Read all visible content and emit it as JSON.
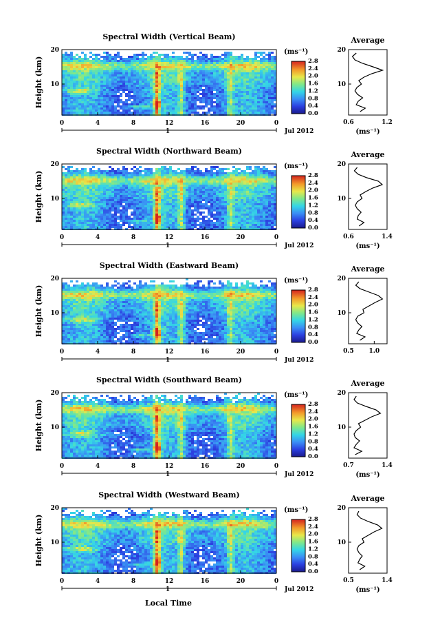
{
  "figure": {
    "date_label": "Jul 2012",
    "xlabel": "Local Time",
    "day_marker": "1",
    "avg_title": "Average",
    "unit": "(ms⁻¹)",
    "y_axis_label": "Height (km)"
  },
  "chart_data": [
    {
      "type": "heatmap",
      "title": "Spectral Width (Vertical Beam)",
      "xlabel": "",
      "ylabel": "Height (km)",
      "x_ticks": [
        "0",
        "4",
        "8",
        "12",
        "16",
        "20",
        "0"
      ],
      "y_ticks": [
        "10",
        "20"
      ],
      "xlim": [
        0,
        24
      ],
      "ylim": [
        1,
        20
      ],
      "colorbar": {
        "label": "(ms⁻¹)",
        "ticks": [
          "0.0",
          "0.4",
          "0.8",
          "1.2",
          "1.6",
          "2.0",
          "2.4",
          "2.8"
        ],
        "range": [
          0,
          3.0
        ]
      },
      "average_profile": {
        "title": "Average",
        "xlabel": "(ms⁻¹)",
        "x_ticks": [
          "0.6",
          "1.2"
        ],
        "xlim": [
          0.6,
          1.2
        ],
        "y_ticks": [
          "10",
          "20"
        ],
        "height_km": [
          2,
          3,
          4,
          5,
          6,
          7,
          8,
          9,
          10,
          11,
          12,
          13,
          14,
          15,
          16,
          17,
          18,
          19
        ],
        "width": [
          0.78,
          0.86,
          0.72,
          0.75,
          0.82,
          0.74,
          0.7,
          0.73,
          0.8,
          0.76,
          0.84,
          0.96,
          1.13,
          0.98,
          0.82,
          0.7,
          0.66,
          0.72
        ]
      }
    },
    {
      "type": "heatmap",
      "title": "Spectral Width (Northward Beam)",
      "xlabel": "",
      "ylabel": "Height (km)",
      "x_ticks": [
        "0",
        "4",
        "8",
        "12",
        "16",
        "20",
        "0"
      ],
      "y_ticks": [
        "10",
        "20"
      ],
      "xlim": [
        0,
        24
      ],
      "ylim": [
        1,
        20
      ],
      "colorbar": {
        "label": "(ms⁻¹)",
        "ticks": [
          "0.0",
          "0.4",
          "0.8",
          "1.2",
          "1.6",
          "2.0",
          "2.4",
          "2.8"
        ],
        "range": [
          0,
          3.0
        ]
      },
      "average_profile": {
        "title": "Average",
        "xlabel": "(ms⁻¹)",
        "x_ticks": [
          "0.6",
          "1.4"
        ],
        "xlim": [
          0.6,
          1.4
        ],
        "y_ticks": [
          "10",
          "20"
        ],
        "height_km": [
          2,
          3,
          4,
          5,
          6,
          7,
          8,
          9,
          10,
          11,
          12,
          13,
          14,
          15,
          16,
          17,
          18,
          19
        ],
        "width": [
          0.82,
          0.92,
          0.78,
          0.8,
          0.86,
          0.78,
          0.74,
          0.78,
          0.88,
          0.84,
          0.96,
          1.1,
          1.3,
          1.22,
          0.98,
          0.8,
          0.72,
          0.78
        ]
      }
    },
    {
      "type": "heatmap",
      "title": "Spectral Width (Eastward Beam)",
      "xlabel": "",
      "ylabel": "Height (km)",
      "x_ticks": [
        "0",
        "4",
        "8",
        "12",
        "16",
        "20",
        "0"
      ],
      "y_ticks": [
        "10",
        "20"
      ],
      "xlim": [
        0,
        24
      ],
      "ylim": [
        1,
        20
      ],
      "colorbar": {
        "label": "(ms⁻¹)",
        "ticks": [
          "0.0",
          "0.4",
          "0.8",
          "1.2",
          "1.6",
          "2.0",
          "2.4",
          "2.8"
        ],
        "range": [
          0,
          3.0
        ]
      },
      "average_profile": {
        "title": "Average",
        "xlabel": "",
        "x_ticks": [
          "0.5",
          "1.0"
        ],
        "xlim": [
          0.5,
          1.25
        ],
        "y_ticks": [
          "10",
          "20"
        ],
        "height_km": [
          2,
          3,
          4,
          5,
          6,
          7,
          8,
          9,
          10,
          11,
          12,
          13,
          14,
          15,
          16,
          17,
          18,
          19
        ],
        "width": [
          0.72,
          0.82,
          0.66,
          0.7,
          0.76,
          0.68,
          0.64,
          0.68,
          0.8,
          0.78,
          0.9,
          1.02,
          1.16,
          1.08,
          0.9,
          0.72,
          0.64,
          0.7
        ]
      }
    },
    {
      "type": "heatmap",
      "title": "Spectral Width (Southward Beam)",
      "xlabel": "",
      "ylabel": "Height (km)",
      "x_ticks": [
        "0",
        "4",
        "8",
        "12",
        "16",
        "20",
        "0"
      ],
      "y_ticks": [
        "10",
        "20"
      ],
      "xlim": [
        0,
        24
      ],
      "ylim": [
        1,
        20
      ],
      "colorbar": {
        "label": "(ms⁻¹)",
        "ticks": [
          "0.0",
          "0.4",
          "0.8",
          "1.2",
          "1.6",
          "2.0",
          "2.4",
          "2.8"
        ],
        "range": [
          0,
          3.0
        ]
      },
      "average_profile": {
        "title": "Average",
        "xlabel": "(ms⁻¹)",
        "x_ticks": [
          "0.7",
          "1.4"
        ],
        "xlim": [
          0.7,
          1.4
        ],
        "y_ticks": [
          "10",
          "20"
        ],
        "height_km": [
          2,
          3,
          4,
          5,
          6,
          7,
          8,
          9,
          10,
          11,
          12,
          13,
          14,
          15,
          16,
          17,
          18,
          19
        ],
        "width": [
          0.82,
          0.94,
          0.8,
          0.84,
          0.9,
          0.82,
          0.8,
          0.84,
          0.92,
          0.88,
          1.0,
          1.12,
          1.28,
          1.2,
          1.02,
          0.86,
          0.8,
          0.84
        ]
      }
    },
    {
      "type": "heatmap",
      "title": "Spectral Width (Westward Beam)",
      "xlabel": "Local Time",
      "ylabel": "Height (km)",
      "x_ticks": [
        "0",
        "4",
        "8",
        "12",
        "16",
        "20",
        "0"
      ],
      "y_ticks": [
        "10",
        "20"
      ],
      "xlim": [
        0,
        24
      ],
      "ylim": [
        1,
        20
      ],
      "colorbar": {
        "label": "(ms⁻¹)",
        "ticks": [
          "0.0",
          "0.4",
          "0.8",
          "1.2",
          "1.6",
          "2.0",
          "2.4",
          "2.8"
        ],
        "range": [
          0,
          3.0
        ]
      },
      "average_profile": {
        "title": "Average",
        "xlabel": "(ms⁻¹)",
        "x_ticks": [
          "0.5",
          "1.4"
        ],
        "xlim": [
          0.5,
          1.4
        ],
        "y_ticks": [
          "10",
          "20"
        ],
        "height_km": [
          2,
          3,
          4,
          5,
          6,
          7,
          8,
          9,
          10,
          11,
          12,
          13,
          14,
          15,
          16,
          17,
          18,
          19
        ],
        "width": [
          0.76,
          0.88,
          0.72,
          0.76,
          0.82,
          0.74,
          0.7,
          0.74,
          0.86,
          0.82,
          0.96,
          1.1,
          1.28,
          1.18,
          0.96,
          0.78,
          0.7,
          0.74
        ]
      }
    }
  ]
}
